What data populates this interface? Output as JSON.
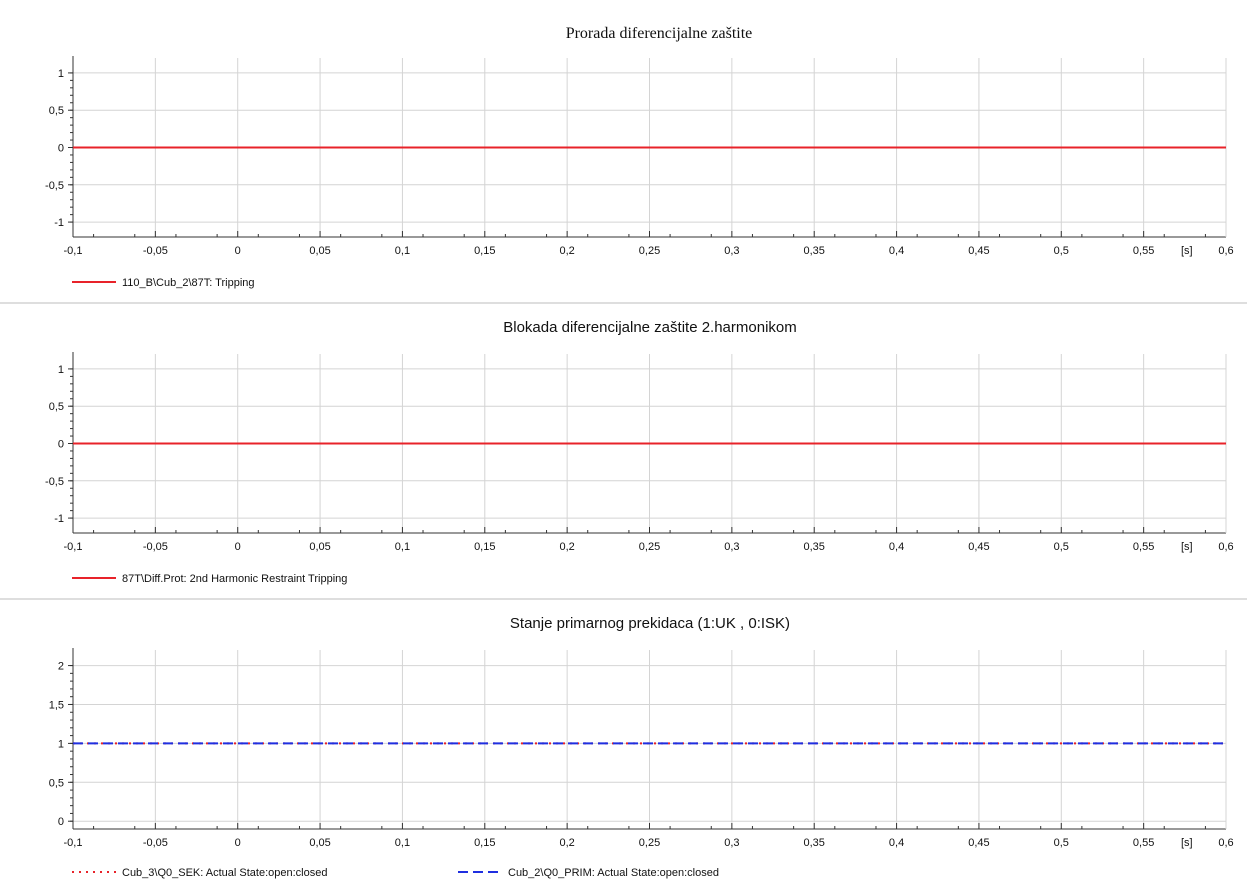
{
  "x_axis": {
    "unit_label": "[s]",
    "ticks": [
      "-0,1",
      "-0,05",
      "0",
      "0,05",
      "0,1",
      "0,15",
      "0,2",
      "0,25",
      "0,3",
      "0,35",
      "0,4",
      "0,45",
      "0,5",
      "0,55",
      "0,6"
    ]
  },
  "colors": {
    "red": "#e8232a",
    "blue": "#1f2fe0",
    "grid": "#d4d4d4",
    "axis": "#333333",
    "separator": "#bdbdbd"
  },
  "chart_data": [
    {
      "type": "line",
      "title": "Prorada diferencijalne zaštite",
      "x_range": [
        -0.1,
        0.6
      ],
      "ylim": [
        -1.2,
        1.2
      ],
      "y_ticks": [
        "1",
        "0,5",
        "0",
        "-0,5",
        "-1"
      ],
      "y_tick_values": [
        1,
        0.5,
        0,
        -0.5,
        -1
      ],
      "grid": true,
      "series": [
        {
          "name": "110_B\\Cub_2\\87T: Tripping",
          "x": [
            -0.1,
            0.6
          ],
          "y": [
            0,
            0
          ],
          "color": "#e8232a",
          "style": "solid"
        }
      ]
    },
    {
      "type": "line",
      "title": "Blokada diferencijalne zaštite 2.harmonikom",
      "x_range": [
        -0.1,
        0.6
      ],
      "ylim": [
        -1.2,
        1.2
      ],
      "y_ticks": [
        "1",
        "0,5",
        "0",
        "-0,5",
        "-1"
      ],
      "y_tick_values": [
        1,
        0.5,
        0,
        -0.5,
        -1
      ],
      "grid": true,
      "series": [
        {
          "name": "87T\\Diff.Prot: 2nd Harmonic Restraint Tripping",
          "x": [
            -0.1,
            0.6
          ],
          "y": [
            0,
            0
          ],
          "color": "#e8232a",
          "style": "solid"
        }
      ]
    },
    {
      "type": "line",
      "title": "Stanje primarnog prekidaca (1:UK , 0:ISK)",
      "x_range": [
        -0.1,
        0.6
      ],
      "ylim": [
        -0.1,
        2.2
      ],
      "y_ticks": [
        "2",
        "1,5",
        "1",
        "0,5",
        "0"
      ],
      "y_tick_values": [
        2,
        1.5,
        1,
        0.5,
        0
      ],
      "grid": true,
      "series": [
        {
          "name": "Cub_3\\Q0_SEK: Actual State:open:closed",
          "x": [
            -0.1,
            0.6
          ],
          "y": [
            1,
            1
          ],
          "color": "#e8232a",
          "style": "dotted"
        },
        {
          "name": "Cub_2\\Q0_PRIM: Actual State:open:closed",
          "x": [
            -0.1,
            0.6
          ],
          "y": [
            1,
            1
          ],
          "color": "#1f2fe0",
          "style": "dashed"
        }
      ]
    }
  ]
}
